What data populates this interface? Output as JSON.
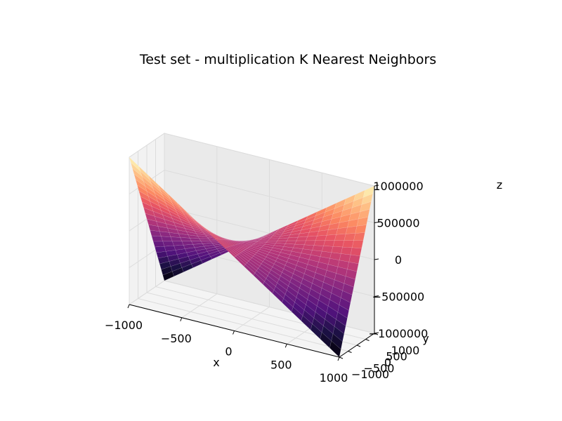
{
  "chart_data": {
    "type": "surface3d",
    "title": "Test set - multiplication K Nearest Neighbors",
    "xlabel": "x",
    "ylabel": "y",
    "zlabel": "z",
    "xlim": [
      -1000,
      1000
    ],
    "ylim": [
      -1000,
      1000
    ],
    "zlim": [
      -1000000,
      1000000
    ],
    "x_ticks": [
      -1000,
      -500,
      0,
      500,
      1000
    ],
    "y_ticks": [
      -1000,
      -500,
      0,
      500,
      1000
    ],
    "z_ticks": [
      -1000000,
      -500000,
      0,
      500000,
      1000000
    ],
    "x_tick_labels": [
      "−1000",
      "−500",
      "0",
      "500",
      "1000"
    ],
    "y_tick_labels": [
      "−1000",
      "−500",
      "0",
      "500",
      "1000"
    ],
    "z_tick_labels": [
      "−1000000",
      "−500000",
      "0",
      "500000",
      "1000000"
    ],
    "surface": "z = x * y",
    "colormap": "magma",
    "grid": true
  }
}
